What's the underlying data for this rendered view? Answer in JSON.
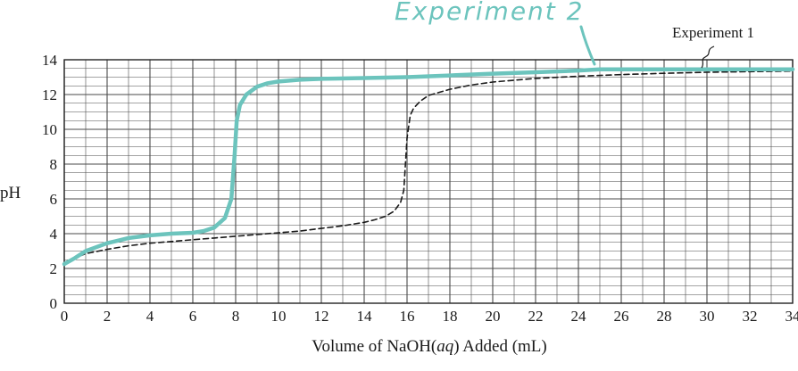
{
  "chart_data": {
    "type": "line",
    "xlabel_parts": [
      "Volume of NaOH(",
      "aq",
      ") Added (mL)"
    ],
    "ylabel": "pH",
    "xlim": [
      0,
      34
    ],
    "ylim": [
      0,
      14
    ],
    "x_ticks": [
      0,
      2,
      4,
      6,
      8,
      10,
      12,
      14,
      16,
      18,
      20,
      22,
      24,
      26,
      28,
      30,
      32,
      34
    ],
    "y_ticks": [
      0,
      2,
      4,
      6,
      8,
      10,
      12,
      14
    ],
    "grid": true,
    "colors": {
      "experiment_1": "#1a1a1a",
      "experiment_2": "#6cc4bd",
      "grid": "#4a4a4a"
    },
    "series": [
      {
        "name": "Experiment 1",
        "style": "dashed",
        "x": [
          0,
          0.5,
          1,
          2,
          3,
          4,
          5,
          6,
          7,
          8,
          9,
          10,
          11,
          12,
          13,
          14,
          14.5,
          15,
          15.4,
          15.7,
          15.85,
          16,
          16.15,
          16.3,
          16.6,
          17,
          18,
          19,
          20,
          22,
          24,
          26,
          28,
          30,
          32,
          34
        ],
        "y": [
          2.2,
          2.6,
          2.85,
          3.1,
          3.3,
          3.45,
          3.55,
          3.65,
          3.75,
          3.85,
          3.95,
          4.05,
          4.15,
          4.3,
          4.45,
          4.65,
          4.8,
          5.0,
          5.3,
          5.8,
          6.5,
          9.5,
          10.8,
          11.2,
          11.6,
          11.95,
          12.3,
          12.55,
          12.72,
          12.93,
          13.05,
          13.15,
          13.22,
          13.28,
          13.32,
          13.35
        ]
      },
      {
        "name": "Experiment 2",
        "style": "solid",
        "x": [
          0,
          0.5,
          1,
          2,
          3,
          4,
          5,
          6,
          6.5,
          7,
          7.5,
          7.8,
          7.95,
          8.05,
          8.2,
          8.5,
          9,
          9.5,
          10,
          11,
          12,
          14,
          16,
          18,
          20,
          22,
          24,
          25,
          27,
          29,
          31,
          34
        ],
        "y": [
          2.25,
          2.6,
          3.0,
          3.45,
          3.75,
          3.9,
          4.0,
          4.05,
          4.15,
          4.35,
          4.9,
          6.0,
          8.5,
          10.5,
          11.4,
          12.0,
          12.45,
          12.65,
          12.75,
          12.85,
          12.9,
          12.95,
          13.0,
          13.1,
          13.2,
          13.28,
          13.38,
          13.45,
          13.45,
          13.45,
          13.45,
          13.45
        ]
      }
    ],
    "annotations": {
      "printed": "Experiment 1",
      "handwritten": "Experiment 2"
    }
  }
}
